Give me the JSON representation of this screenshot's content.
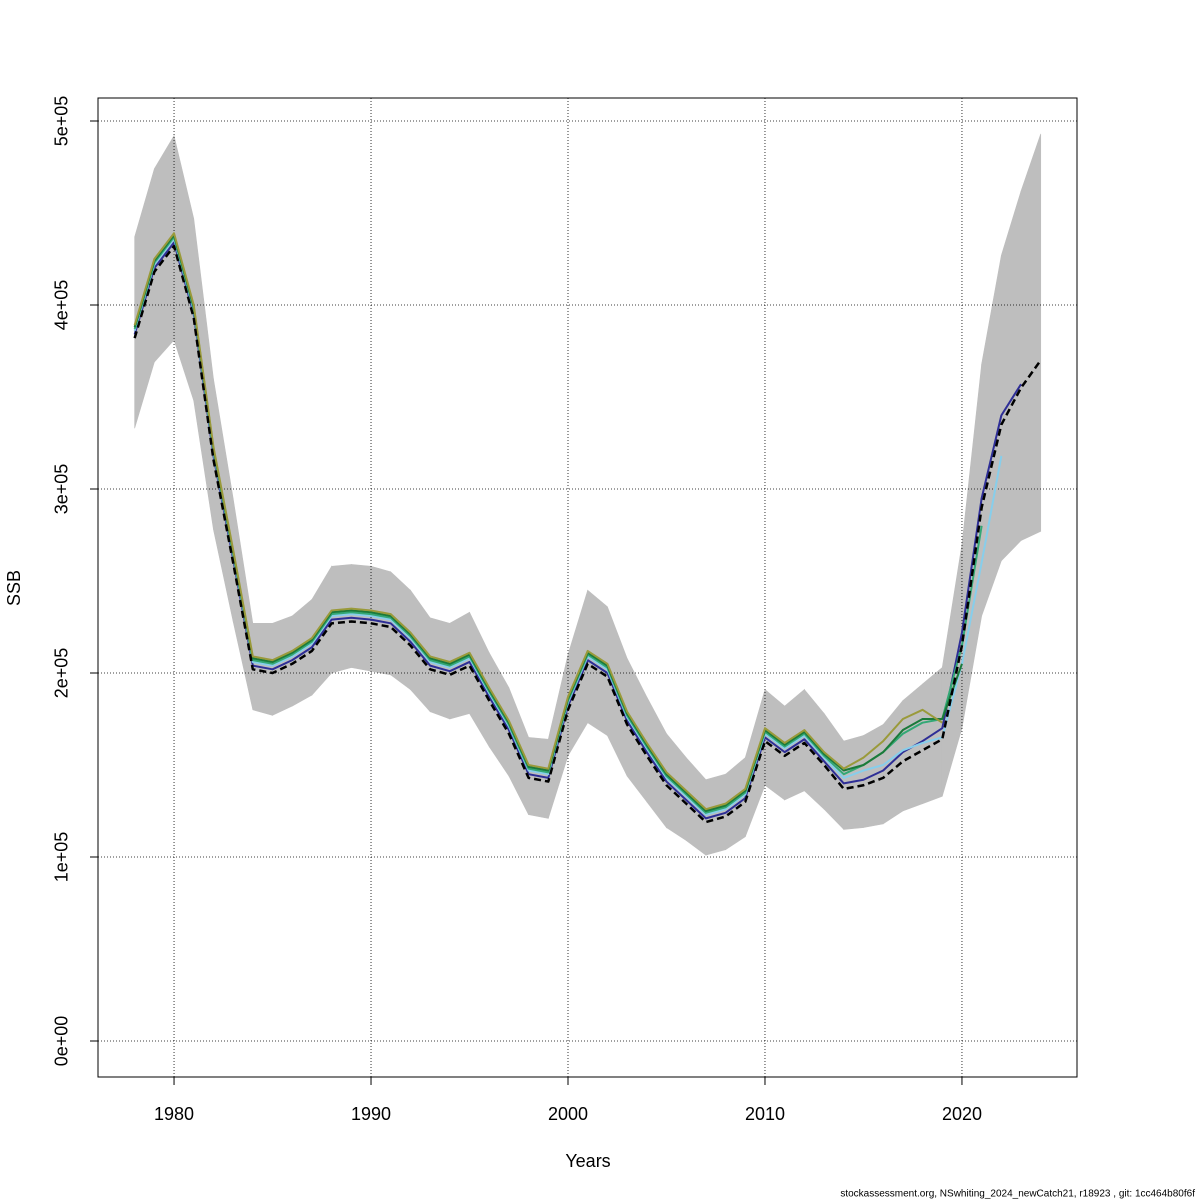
{
  "chart_data": {
    "type": "line",
    "x": [
      1978,
      1979,
      1980,
      1981,
      1982,
      1983,
      1984,
      1985,
      1986,
      1987,
      1988,
      1989,
      1990,
      1991,
      1992,
      1993,
      1994,
      1995,
      1996,
      1997,
      1998,
      1999,
      2000,
      2001,
      2002,
      2003,
      2004,
      2005,
      2006,
      2007,
      2008,
      2009,
      2010,
      2011,
      2012,
      2013,
      2014,
      2015,
      2016,
      2017,
      2018,
      2019,
      2020,
      2021,
      2022,
      2023,
      2024
    ],
    "xlabel": "Years",
    "ylabel": "SSB",
    "footnote": "stockassessment.org, NSwhiting_2024_newCatch21, r18923 , git: 1cc464b80f6f",
    "xlim": [
      1976.14,
      2025.84
    ],
    "ylim": [
      -19565,
      512500
    ],
    "xticks": [
      1980,
      1990,
      2000,
      2010,
      2020
    ],
    "yticks": [
      {
        "value": 0,
        "label": "0e+00"
      },
      {
        "value": 100000,
        "label": "1e+05"
      },
      {
        "value": 200000,
        "label": "2e+05"
      },
      {
        "value": 300000,
        "label": "3e+05"
      },
      {
        "value": 400000,
        "label": "4e+05"
      },
      {
        "value": 500000,
        "label": "5e+05"
      }
    ],
    "grid": true,
    "band": {
      "color": "#bebebe",
      "upper": [
        437000,
        474000,
        492000,
        447000,
        360000,
        295000,
        227000,
        227000,
        231000,
        240000,
        258000,
        259000,
        258000,
        255000,
        245000,
        230000,
        227000,
        233000,
        211000,
        192000,
        165000,
        164000,
        210000,
        245000,
        236000,
        208000,
        187000,
        167000,
        154000,
        142000,
        145000,
        154000,
        191000,
        182000,
        191000,
        178000,
        163000,
        166000,
        172000,
        185000,
        194000,
        203000,
        270000,
        368000,
        427000,
        462000,
        493000
      ],
      "lower": [
        333000,
        369000,
        381000,
        348000,
        278000,
        228000,
        180000,
        177000,
        182000,
        188000,
        200000,
        203000,
        201000,
        199000,
        191000,
        179000,
        175000,
        178000,
        160000,
        144000,
        123000,
        121000,
        155000,
        173000,
        166000,
        144000,
        130000,
        116000,
        109000,
        101000,
        104000,
        111000,
        139000,
        131000,
        136000,
        126000,
        115000,
        116000,
        118000,
        125000,
        129000,
        133000,
        170000,
        231000,
        261000,
        272000,
        277000
      ]
    },
    "series": [
      {
        "color": "#2e2e96",
        "values": [
          384000,
          420000,
          434000,
          395000,
          318000,
          262000,
          204000,
          202000,
          207000,
          214000,
          229000,
          230000,
          229000,
          227000,
          217000,
          204000,
          201000,
          206000,
          187000,
          169000,
          145000,
          143000,
          182000,
          207000,
          200000,
          174000,
          157000,
          141000,
          131000,
          121000,
          124000,
          132000,
          165000,
          157000,
          164000,
          152000,
          140000,
          142000,
          147000,
          157000,
          163000,
          170000,
          222000,
          295000,
          340000,
          357000,
          null
        ]
      },
      {
        "color": "#87ceeb",
        "values": [
          386000,
          422000,
          436000,
          397000,
          320000,
          264000,
          206000,
          204000,
          209000,
          216000,
          231000,
          232000,
          231000,
          229000,
          219000,
          206000,
          203000,
          208000,
          189000,
          171000,
          147000,
          145000,
          184000,
          209000,
          202000,
          176000,
          159000,
          143000,
          133000,
          123000,
          126000,
          134000,
          167000,
          159000,
          166000,
          154000,
          143000,
          147000,
          150000,
          158000,
          162000,
          165000,
          205000,
          260000,
          318000,
          null,
          null
        ]
      },
      {
        "color": "#33a875",
        "values": [
          387000,
          423000,
          437000,
          398000,
          321000,
          265000,
          207000,
          205000,
          210000,
          217000,
          232000,
          233000,
          232000,
          230000,
          220000,
          207000,
          204000,
          209000,
          190000,
          172000,
          148000,
          146000,
          185000,
          210000,
          203000,
          177000,
          160000,
          144000,
          134000,
          124000,
          127000,
          135000,
          168000,
          160000,
          167000,
          155000,
          145000,
          150000,
          157000,
          167000,
          173000,
          175000,
          215000,
          280000,
          null,
          null,
          null
        ]
      },
      {
        "color": "#1b7a3a",
        "values": [
          388000,
          424000,
          438000,
          399000,
          322000,
          266000,
          208000,
          206000,
          211000,
          218000,
          233000,
          234000,
          233000,
          231000,
          221000,
          208000,
          205000,
          210000,
          191000,
          173000,
          149000,
          147000,
          186000,
          211000,
          204000,
          178000,
          161000,
          145000,
          135000,
          125000,
          128000,
          136000,
          169000,
          161000,
          168000,
          156000,
          147000,
          150000,
          157000,
          169000,
          175000,
          175000,
          205000,
          null,
          null,
          null,
          null
        ]
      },
      {
        "color": "#9a9a3a",
        "values": [
          389000,
          425000,
          439000,
          400000,
          323000,
          267000,
          209000,
          207000,
          212000,
          219000,
          234000,
          235000,
          234000,
          232000,
          222000,
          209000,
          206000,
          211000,
          192000,
          174000,
          150000,
          148000,
          187000,
          212000,
          205000,
          179000,
          162000,
          146000,
          136000,
          126000,
          129000,
          137000,
          170000,
          162000,
          169000,
          157000,
          148000,
          154000,
          163000,
          175000,
          180000,
          173000,
          null,
          null,
          null,
          null,
          null
        ]
      },
      {
        "color": "#000000",
        "dashed": true,
        "values": [
          382000,
          418000,
          432000,
          393000,
          316000,
          260000,
          202000,
          200000,
          205000,
          212000,
          227000,
          228000,
          227000,
          225000,
          215000,
          202000,
          199000,
          204000,
          185000,
          167000,
          143000,
          141000,
          180000,
          205000,
          198000,
          172000,
          155000,
          139000,
          129000,
          119000,
          122000,
          130000,
          163000,
          155000,
          162000,
          150000,
          137000,
          139000,
          143000,
          152000,
          158000,
          164000,
          215000,
          290000,
          335000,
          355000,
          370000
        ]
      }
    ]
  }
}
